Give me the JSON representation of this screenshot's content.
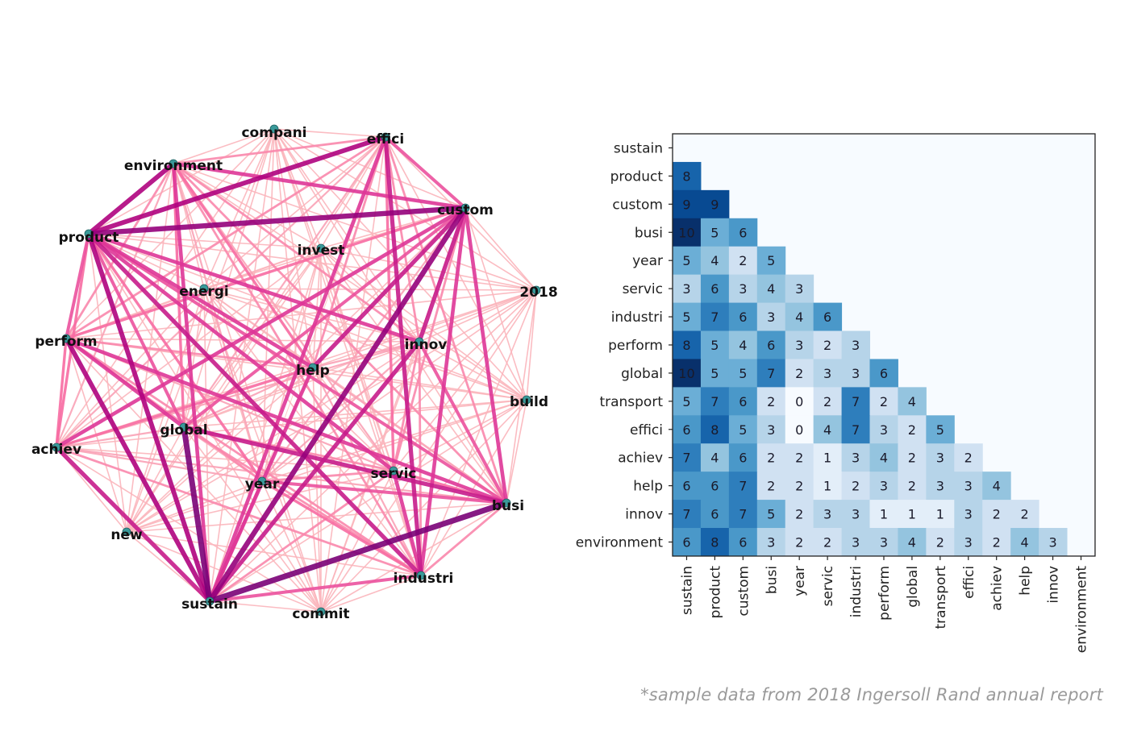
{
  "chart_data": [
    {
      "type": "network",
      "nodes": [
        "compani",
        "effici",
        "environment",
        "custom",
        "product",
        "invest",
        "energi",
        "2018",
        "perform",
        "innov",
        "help",
        "build",
        "global",
        "achiev",
        "servic",
        "year",
        "busi",
        "new",
        "industri",
        "sustain",
        "commit"
      ],
      "edge_weights": "co-occurrence counts (shown in heatmap); all node pairs connected",
      "node_color": "#3a9a9a",
      "edge_colormap": "RdPu"
    },
    {
      "type": "heatmap",
      "row_labels": [
        "sustain",
        "product",
        "custom",
        "busi",
        "year",
        "servic",
        "industri",
        "perform",
        "global",
        "transport",
        "effici",
        "achiev",
        "help",
        "innov",
        "environment"
      ],
      "col_labels": [
        "sustain",
        "product",
        "custom",
        "busi",
        "year",
        "servic",
        "industri",
        "perform",
        "global",
        "transport",
        "effici",
        "achiev",
        "help",
        "innov",
        "environment"
      ],
      "matrix_lower": [
        [],
        [
          8
        ],
        [
          9,
          9
        ],
        [
          10,
          5,
          6
        ],
        [
          5,
          4,
          2,
          5
        ],
        [
          3,
          6,
          3,
          4,
          3
        ],
        [
          5,
          7,
          6,
          3,
          4,
          6
        ],
        [
          8,
          5,
          4,
          6,
          3,
          2,
          3
        ],
        [
          10,
          5,
          5,
          7,
          2,
          3,
          3,
          6
        ],
        [
          5,
          7,
          6,
          2,
          0,
          2,
          7,
          2,
          4
        ],
        [
          6,
          8,
          5,
          3,
          0,
          4,
          7,
          3,
          2,
          5
        ],
        [
          7,
          4,
          6,
          2,
          2,
          1,
          3,
          4,
          2,
          3,
          2
        ],
        [
          6,
          6,
          7,
          2,
          2,
          1,
          2,
          3,
          2,
          3,
          3,
          4
        ],
        [
          7,
          6,
          7,
          5,
          2,
          3,
          3,
          1,
          1,
          1,
          3,
          2,
          2
        ],
        [
          6,
          8,
          6,
          3,
          2,
          2,
          3,
          3,
          4,
          2,
          3,
          2,
          4,
          3
        ]
      ],
      "colormap": "Blues",
      "vrange": [
        0,
        10
      ]
    }
  ],
  "footnote": "*sample data from 2018 Ingersoll Rand annual report"
}
